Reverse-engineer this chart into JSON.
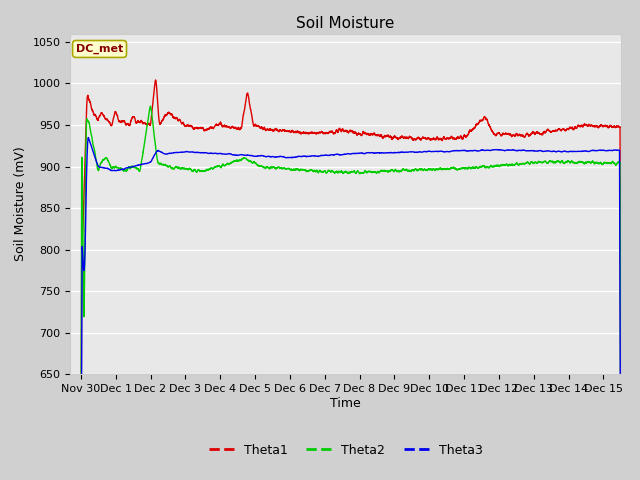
{
  "title": "Soil Moisture",
  "ylabel": "Soil Moisture (mV)",
  "xlabel": "Time",
  "xlim_days": [
    -0.3,
    15.5
  ],
  "ylim": [
    650,
    1060
  ],
  "yticks": [
    650,
    700,
    750,
    800,
    850,
    900,
    950,
    1000,
    1050
  ],
  "xtick_labels": [
    "Nov 30",
    "Dec 1",
    "Dec 2",
    "Dec 3",
    "Dec 4",
    "Dec 5",
    "Dec 6",
    "Dec 7",
    "Dec 8",
    "Dec 9",
    "Dec 10",
    "Dec 11",
    "Dec 12",
    "Dec 13",
    "Dec 14",
    "Dec 15"
  ],
  "xtick_positions": [
    0,
    1,
    2,
    3,
    4,
    5,
    6,
    7,
    8,
    9,
    10,
    11,
    12,
    13,
    14,
    15
  ],
  "colors": {
    "theta1": "#dd0000",
    "theta2": "#00cc00",
    "theta3": "#0000ee"
  },
  "legend_label": "DC_met",
  "fig_facecolor": "#d0d0d0",
  "plot_bg_color": "#e8e8e8",
  "grid_color": "#ffffff",
  "title_fontsize": 11,
  "label_fontsize": 9,
  "tick_fontsize": 8
}
